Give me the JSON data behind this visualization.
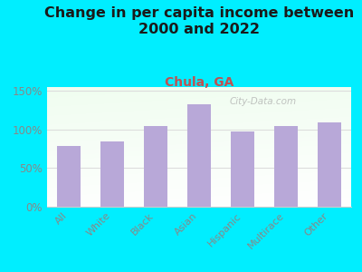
{
  "title": "Change in per capita income between\n2000 and 2022",
  "subtitle": "Chula, GA",
  "categories": [
    "All",
    "White",
    "Black",
    "Asian",
    "Hispanic",
    "Multirace",
    "Other"
  ],
  "values": [
    79,
    85,
    105,
    133,
    98,
    104,
    109
  ],
  "bar_color": "#b8a8d8",
  "background_outer": "#00eeff",
  "title_fontsize": 11.5,
  "subtitle_fontsize": 10,
  "subtitle_color": "#c05050",
  "title_color": "#1a1a1a",
  "tick_color": "#888888",
  "ylim": [
    0,
    155
  ],
  "yticks": [
    0,
    50,
    100,
    150
  ],
  "ytick_labels": [
    "0%",
    "50%",
    "100%",
    "150%"
  ],
  "watermark": "City-Data.com"
}
